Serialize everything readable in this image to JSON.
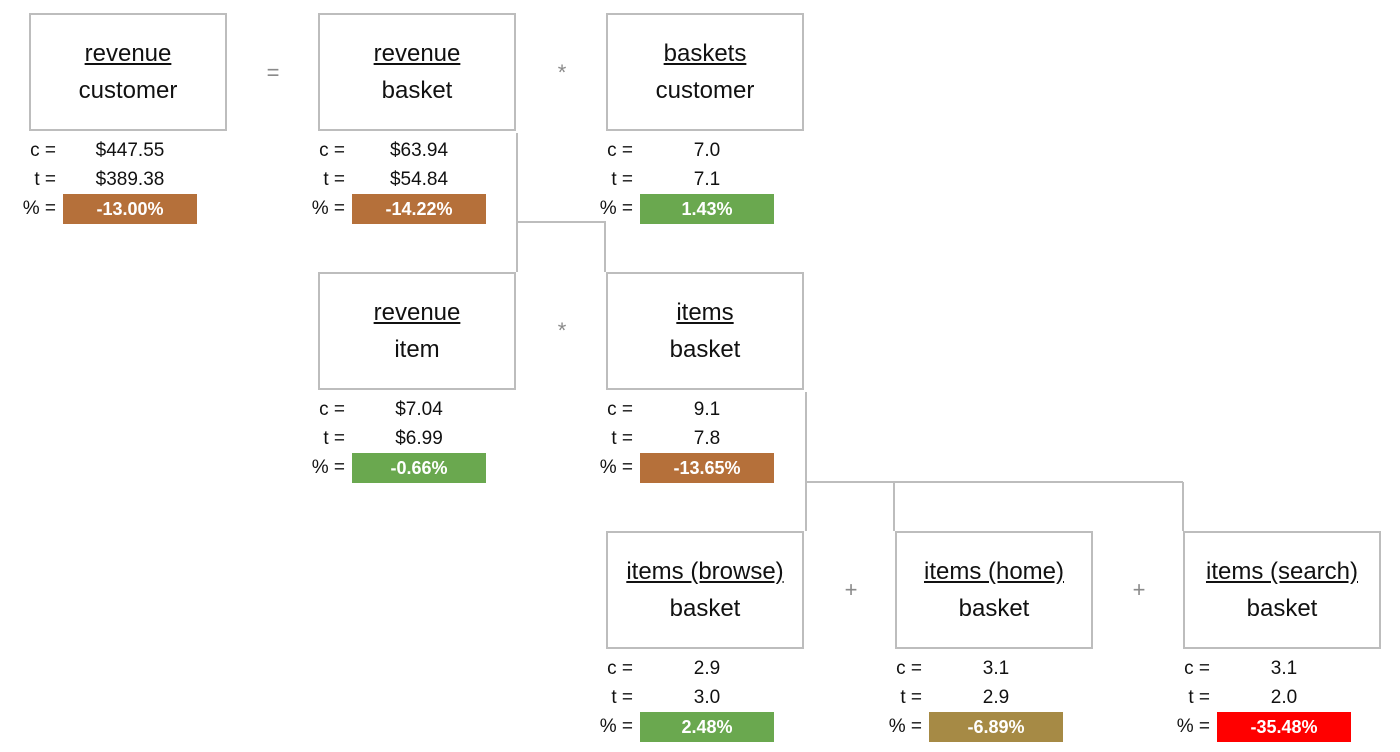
{
  "operators": {
    "equals": "=",
    "times": "*",
    "plus": "+"
  },
  "labels": {
    "control": "c =",
    "treatment": "t =",
    "percent": "% ="
  },
  "colors": {
    "brown": "#b5703a",
    "green": "#6aa84f",
    "olive": "#a68a45",
    "red": "#ff0000",
    "box_border": "#bdbdbd",
    "connector": "#bdbdbd"
  },
  "nodes": {
    "revenue_customer": {
      "numerator": "revenue",
      "denominator": "customer",
      "c": "$447.55",
      "t": "$389.38",
      "pct": "-13.00%",
      "pct_color": "#b5703a"
    },
    "revenue_basket": {
      "numerator": "revenue",
      "denominator": "basket",
      "c": "$63.94",
      "t": "$54.84",
      "pct": "-14.22%",
      "pct_color": "#b5703a"
    },
    "baskets_customer": {
      "numerator": "baskets",
      "denominator": "customer",
      "c": "7.0",
      "t": "7.1",
      "pct": "1.43%",
      "pct_color": "#6aa84f"
    },
    "revenue_item": {
      "numerator": "revenue",
      "denominator": "item",
      "c": "$7.04",
      "t": "$6.99",
      "pct": "-0.66%",
      "pct_color": "#6aa84f"
    },
    "items_basket": {
      "numerator": "items",
      "denominator": "basket",
      "c": "9.1",
      "t": "7.8",
      "pct": "-13.65%",
      "pct_color": "#b5703a"
    },
    "items_browse_basket": {
      "numerator": "items (browse)",
      "denominator": "basket",
      "c": "2.9",
      "t": "3.0",
      "pct": "2.48%",
      "pct_color": "#6aa84f"
    },
    "items_home_basket": {
      "numerator": "items (home)",
      "denominator": "basket",
      "c": "3.1",
      "t": "2.9",
      "pct": "-6.89%",
      "pct_color": "#a68a45"
    },
    "items_search_basket": {
      "numerator": "items (search)",
      "denominator": "basket",
      "c": "3.1",
      "t": "2.0",
      "pct": "-35.48%",
      "pct_color": "#ff0000"
    }
  }
}
